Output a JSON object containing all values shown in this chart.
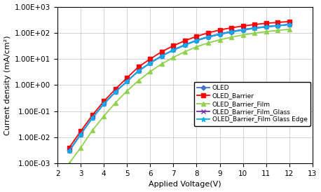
{
  "xlabel": "Applied Voltage(V)",
  "ylabel": "Current density (mA/cm²)",
  "xlim": [
    2,
    13
  ],
  "ylim_log": [
    0.001,
    1000.0
  ],
  "xticks": [
    2,
    3,
    4,
    5,
    6,
    7,
    8,
    9,
    10,
    11,
    12,
    13
  ],
  "series": [
    {
      "name": "OLED",
      "color": "#4472C4",
      "marker": "D",
      "markersize": 3.5,
      "linewidth": 1.3,
      "x": [
        2.5,
        3.0,
        3.5,
        4.0,
        4.5,
        5.0,
        5.5,
        6.0,
        6.5,
        7.0,
        7.5,
        8.0,
        8.5,
        9.0,
        9.5,
        10.0,
        10.5,
        11.0,
        11.5,
        12.0
      ],
      "y": [
        0.003,
        0.013,
        0.055,
        0.19,
        0.55,
        1.4,
        3.5,
        7.0,
        13.0,
        22.0,
        34.0,
        50.0,
        68.0,
        87.0,
        107.0,
        128.0,
        148.0,
        168.0,
        185.0,
        205.0
      ]
    },
    {
      "name": "OLED_Barrier",
      "color": "#FF0000",
      "marker": "s",
      "markersize": 4.5,
      "linewidth": 1.3,
      "x": [
        2.5,
        3.0,
        3.5,
        4.0,
        4.5,
        5.0,
        5.5,
        6.0,
        6.5,
        7.0,
        7.5,
        8.0,
        8.5,
        9.0,
        9.5,
        10.0,
        10.5,
        11.0,
        11.5,
        12.0
      ],
      "y": [
        0.004,
        0.017,
        0.07,
        0.24,
        0.7,
        1.9,
        5.0,
        10.0,
        19.0,
        32.0,
        50.0,
        73.0,
        100.0,
        128.0,
        156.0,
        182.0,
        208.0,
        232.0,
        250.0,
        270.0
      ]
    },
    {
      "name": "OLED_Barrier_Film",
      "color": "#92D050",
      "marker": "^",
      "markersize": 4.5,
      "linewidth": 1.3,
      "x": [
        2.5,
        3.0,
        3.5,
        4.0,
        4.5,
        5.0,
        5.5,
        6.0,
        6.5,
        7.0,
        7.5,
        8.0,
        8.5,
        9.0,
        9.5,
        10.0,
        10.5,
        11.0,
        11.5,
        12.0
      ],
      "y": [
        0.001,
        0.004,
        0.018,
        0.065,
        0.21,
        0.6,
        1.5,
        3.3,
        6.5,
        11.5,
        19.0,
        29.0,
        41.0,
        54.0,
        68.0,
        83.0,
        97.0,
        111.0,
        124.0,
        136.0
      ]
    },
    {
      "name": "OLED_Barrier_Film_Glass",
      "color": "#7030A0",
      "marker": "x",
      "markersize": 5,
      "linewidth": 1.3,
      "x": [
        2.5,
        3.0,
        3.5,
        4.0,
        4.5,
        5.0,
        5.5,
        6.0,
        6.5,
        7.0,
        7.5,
        8.0,
        8.5,
        9.0,
        9.5,
        10.0,
        10.5,
        11.0,
        11.5,
        12.0
      ],
      "y": [
        0.003,
        0.013,
        0.055,
        0.19,
        0.55,
        1.4,
        3.5,
        7.0,
        13.0,
        22.0,
        35.0,
        52.0,
        71.0,
        91.0,
        112.0,
        133.0,
        154.0,
        173.0,
        190.0,
        210.0
      ]
    },
    {
      "name": "OLED_Barrier_Film Glass Edge",
      "color": "#00B0F0",
      "marker": "*",
      "markersize": 5,
      "linewidth": 1.3,
      "x": [
        2.5,
        3.0,
        3.5,
        4.0,
        4.5,
        5.0,
        5.5,
        6.0,
        6.5,
        7.0,
        7.5,
        8.0,
        8.5,
        9.0,
        9.5,
        10.0,
        10.5,
        11.0,
        11.5,
        12.0
      ],
      "y": [
        0.003,
        0.013,
        0.055,
        0.19,
        0.55,
        1.4,
        3.5,
        7.0,
        13.0,
        22.0,
        34.0,
        51.0,
        69.0,
        89.0,
        109.0,
        130.0,
        151.0,
        170.0,
        187.0,
        207.0
      ]
    }
  ],
  "legend_fontsize": 6.5,
  "axis_label_fontsize": 8,
  "tick_fontsize": 7.5,
  "background_color": "#FFFFFF",
  "grid_color": "#C0C0C0"
}
